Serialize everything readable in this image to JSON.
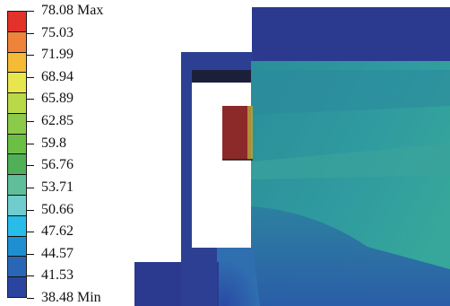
{
  "legend": {
    "labels": [
      "78.08 Max",
      "75.03",
      "71.99",
      "68.94",
      "65.89",
      "62.85",
      "59.8",
      "56.76",
      "53.71",
      "50.66",
      "47.62",
      "44.57",
      "41.53",
      "38.48 Min"
    ],
    "colors": [
      "#e3322a",
      "#f0833a",
      "#f4bb36",
      "#e7e64c",
      "#b9d948",
      "#8ccb4a",
      "#6cbf45",
      "#4fb057",
      "#5fbf9a",
      "#6fcdcd",
      "#28bde8",
      "#1f8fd2",
      "#2a66b6",
      "#2a45a0"
    ]
  },
  "contour": {
    "palette": {
      "deep_blue": "#2b3a8f",
      "mid_blue": "#2b4e9e",
      "teal": "#2a8b9a",
      "teal_light": "#34a3a8",
      "green_teal": "#3fa39a",
      "dark_red": "#8c2a2a",
      "black_band": "#1c1f3a"
    }
  }
}
